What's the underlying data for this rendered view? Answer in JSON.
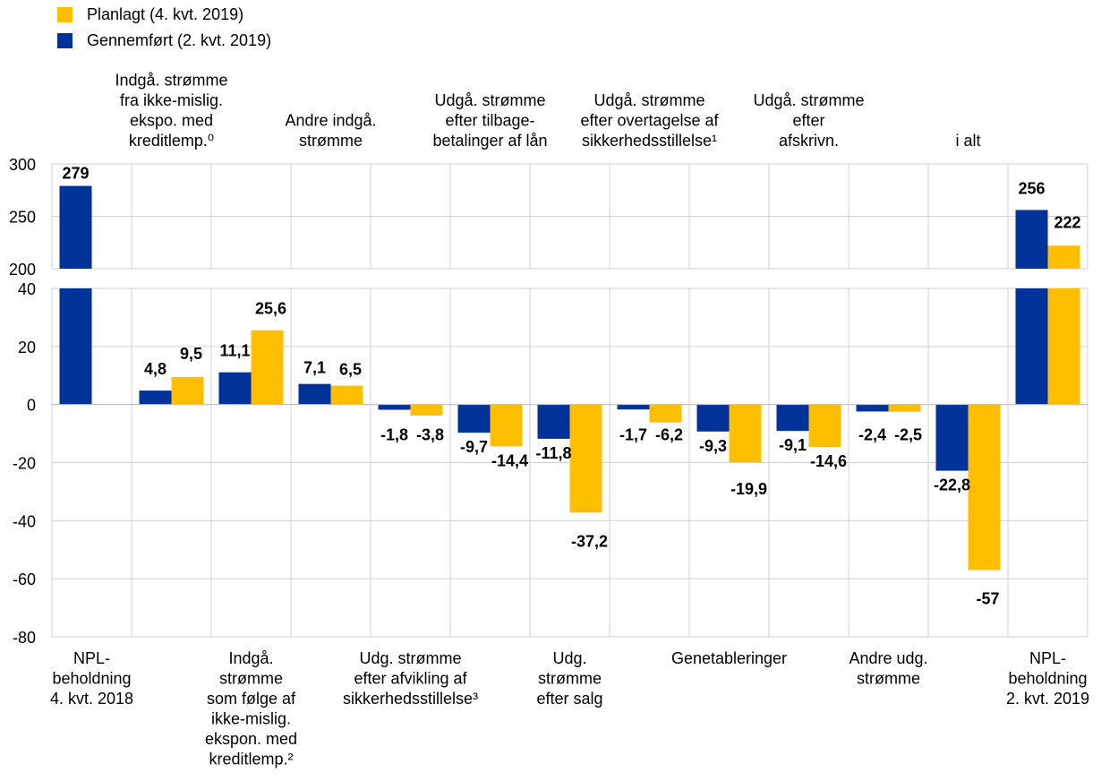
{
  "chart_data": {
    "type": "bar",
    "legend": {
      "placement": "top-left",
      "entries": [
        {
          "label": "Planlagt (4. kvt. 2019)",
          "color": "#FFBF00"
        },
        {
          "label": "Gennemført (2. kvt. 2019)",
          "color": "#003299"
        }
      ]
    },
    "series": [
      {
        "name": "Gennemført (2. kvt. 2019)",
        "color": "#003299",
        "values": [
          279,
          4.8,
          11.1,
          7.1,
          -1.8,
          -9.7,
          -11.8,
          -1.7,
          -9.3,
          -9.1,
          -2.4,
          -22.8,
          256
        ]
      },
      {
        "name": "Planlagt (4. kvt. 2019)",
        "color": "#FFBF00",
        "values": [
          null,
          9.5,
          25.6,
          6.5,
          -3.8,
          -14.4,
          -37.2,
          -6.2,
          -19.9,
          -14.6,
          -2.5,
          -57,
          222
        ]
      }
    ],
    "data_labels": {
      "blue": [
        "279",
        "4,8",
        "11,1",
        "7,1",
        "-1,8",
        "-9,7",
        "-11,8",
        "-1,7",
        "-9,3",
        "-9,1",
        "-2,4",
        "-22,8",
        "256"
      ],
      "yellow": [
        "",
        "9,5",
        "25,6",
        "6,5",
        "-3,8",
        "-14,4",
        "-37,2",
        "-6,2",
        "-19,9",
        "-14,6",
        "-2,5",
        "-57",
        "222"
      ]
    },
    "top_labels": [
      "",
      "Indgå. strømme fra ikke-mislig. ekspo. med kreditlemp.⁰",
      "",
      "Andre indgå. strømme",
      "",
      "Udgå. strømme efter tilbage-betalinger af lån",
      "",
      "Udgå. strømme efter overtagelse af sikkerhedsstillelse¹",
      "",
      "Udgå. strømme efter afskrivn.",
      "",
      "i alt",
      ""
    ],
    "top_label_lines": [
      [],
      [
        "Indgå. strømme",
        "fra ikke-mislig.",
        "ekspo. med",
        "kreditlemp.⁰"
      ],
      [],
      [
        "Andre indgå.",
        "strømme"
      ],
      [],
      [
        "Udgå. strømme",
        "efter tilbage-",
        "betalinger af lån"
      ],
      [],
      [
        "Udgå. strømme",
        "efter overtagelse af",
        "sikkerhedsstillelse¹"
      ],
      [],
      [
        "Udgå. strømme",
        "efter",
        "afskrivn."
      ],
      [],
      [
        "i alt"
      ],
      []
    ],
    "bottom_label_lines": [
      [
        "NPL-",
        "beholdning",
        "4. kvt. 2018"
      ],
      [],
      [
        "Indgå.",
        "strømme",
        "som følge af",
        "ikke-mislig.",
        "ekspon. med",
        "kreditlemp.²"
      ],
      [],
      [
        "Udg. strømme",
        "efter afvikling af",
        "sikkerhedsstillelse³"
      ],
      [],
      [
        "Udg.",
        "strømme",
        "efter salg"
      ],
      [],
      [
        "Genetableringer"
      ],
      [],
      [
        "Andre udg.",
        "strømme"
      ],
      [],
      [
        "NPL-",
        "beholdning",
        "2. kvt. 2019"
      ]
    ],
    "upper_panel": {
      "ylim": [
        200,
        300
      ],
      "ticks": [
        "300",
        "250",
        "200"
      ],
      "tick_values": [
        300,
        250,
        200
      ]
    },
    "lower_panel": {
      "ylim": [
        -80,
        40
      ],
      "ticks": [
        "40",
        "20",
        "0",
        "-20",
        "-40",
        "-60",
        "-80"
      ],
      "tick_values": [
        40,
        20,
        0,
        -20,
        -40,
        -60,
        -80
      ]
    },
    "grid": true
  }
}
